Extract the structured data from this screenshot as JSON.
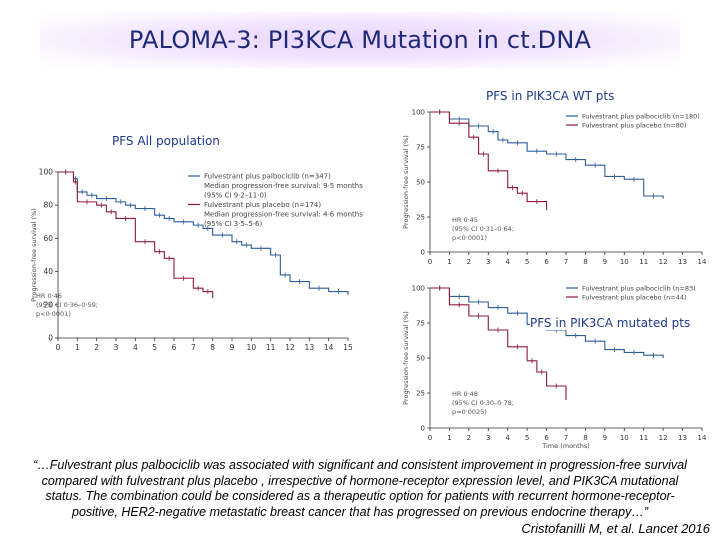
{
  "slide": {
    "title": "PALOMA-3: PI3KCA Mutation in ct.DNA",
    "label_all": "PFS All population",
    "label_wt": "PFS in PIK3CA WT pts",
    "label_mut": "PFS in PIK3CA mutated pts",
    "quote_line1": "“…Fulvestrant plus palbociclib was associated with significant and consistent improvement in progression-free survival",
    "quote_line2": "compared with fulvestrant plus placebo , irrespective of  hormone-receptor expression level, and PIK3CA mutational",
    "quote_line3": "status. The combination could be considered as a therapeutic option for patients with recurrent hormone-receptor-",
    "quote_line4": "positive, HER2-negative metastatic breast cancer that has progressed on previous endocrine therapy…”",
    "citation": "Cristofanilli M, et al. Lancet 2016"
  },
  "colors": {
    "palbo": "#2b5d9b",
    "placebo": "#8b1a3a",
    "title": "#1f2a7a",
    "label": "#1f3a8a"
  },
  "chart_data": [
    {
      "type": "line",
      "panel": "all",
      "ylabel": "Progression-free survival (%)",
      "yticks": [
        "0",
        "20",
        "40",
        "60",
        "80",
        "100"
      ],
      "xticks": [
        "0",
        "1",
        "2",
        "3",
        "4",
        "5",
        "6",
        "7",
        "8",
        "9",
        "10",
        "11",
        "12",
        "13",
        "14",
        "15"
      ],
      "ylim": [
        0,
        100
      ],
      "xlim": [
        0,
        15
      ],
      "legend": [
        "Fulvestrant plus palbociclib (n=347)",
        "Median progression-free survival: 9·5 months",
        "(95% CI 9·2–11·0)",
        "Fulvestrant plus placebo (n=174)",
        "Median progression-free survival: 4·6 months",
        "(95% CI 3·5–5·6)"
      ],
      "annotation": [
        "HR 0·46",
        "(95% CI 0·36–0·59;",
        "p<0·0001)"
      ],
      "series": [
        {
          "name": "Fulvestrant plus palbociclib",
          "x": [
            0,
            0.8,
            1,
            1.5,
            2,
            3,
            3.5,
            4,
            5,
            5.5,
            6,
            7,
            7.5,
            8,
            9,
            9.5,
            10,
            11,
            11.5,
            12,
            13,
            14,
            15
          ],
          "y": [
            100,
            96,
            88,
            86,
            84,
            82,
            80,
            78,
            74,
            72,
            70,
            68,
            66,
            62,
            58,
            56,
            54,
            50,
            38,
            34,
            30,
            28,
            26
          ]
        },
        {
          "name": "Fulvestrant plus placebo",
          "x": [
            0,
            0.8,
            1,
            2,
            2.5,
            3,
            4,
            5,
            5.5,
            6,
            7,
            7.5,
            8
          ],
          "y": [
            100,
            94,
            82,
            80,
            76,
            72,
            58,
            52,
            48,
            36,
            30,
            28,
            24
          ]
        }
      ]
    },
    {
      "type": "line",
      "panel": "PIK3CA WT",
      "ylabel": "Progression-free survival (%)",
      "yticks": [
        "0",
        "25",
        "50",
        "75",
        "100"
      ],
      "xticks": [
        "0",
        "1",
        "2",
        "3",
        "4",
        "5",
        "6",
        "7",
        "8",
        "9",
        "10",
        "11",
        "12",
        "13",
        "14"
      ],
      "ylim": [
        0,
        100
      ],
      "xlim": [
        0,
        14
      ],
      "legend": [
        "Fulvestrant plus palbociclib (n=180)",
        "Fulvestrant plus placebo (n=80)"
      ],
      "annotation": [
        "HR 0·45",
        "(95% CI 0·31–0·64;",
        "p<0·0001)"
      ],
      "series": [
        {
          "name": "Fulvestrant plus palbociclib",
          "x": [
            0,
            1,
            2,
            3,
            3.5,
            4,
            5,
            6,
            7,
            8,
            9,
            10,
            11,
            12
          ],
          "y": [
            100,
            95,
            90,
            86,
            80,
            78,
            72,
            70,
            66,
            62,
            54,
            52,
            40,
            38
          ]
        },
        {
          "name": "Fulvestrant plus placebo",
          "x": [
            0,
            1,
            2,
            2.5,
            3,
            4,
            4.5,
            5,
            6
          ],
          "y": [
            100,
            92,
            82,
            70,
            58,
            46,
            42,
            36,
            30
          ]
        }
      ]
    },
    {
      "type": "line",
      "panel": "PIK3CA mutated",
      "ylabel": "Progression-free survival (%)",
      "yticks": [
        "0",
        "25",
        "50",
        "75",
        "100"
      ],
      "xticks": [
        "0",
        "1",
        "2",
        "3",
        "4",
        "5",
        "6",
        "7",
        "8",
        "9",
        "10",
        "11",
        "12",
        "13",
        "14"
      ],
      "xlabel": "Time (months)",
      "ylim": [
        0,
        100
      ],
      "xlim": [
        0,
        14
      ],
      "legend": [
        "Fulvestrant plus palbociclib (n=83)",
        "Fulvestrant plus placebo (n=44)"
      ],
      "annotation": [
        "HR 0·48",
        "(95% CI 0·30–0·78;",
        "p=0·0025)"
      ],
      "series": [
        {
          "name": "Fulvestrant plus palbociclib",
          "x": [
            0,
            1,
            2,
            3,
            4,
            5,
            6,
            7,
            8,
            9,
            10,
            11,
            12
          ],
          "y": [
            100,
            94,
            90,
            86,
            82,
            74,
            70,
            66,
            62,
            56,
            54,
            52,
            50
          ]
        },
        {
          "name": "Fulvestrant plus placebo",
          "x": [
            0,
            1,
            2,
            3,
            4,
            5,
            5.5,
            6,
            7
          ],
          "y": [
            100,
            88,
            80,
            70,
            58,
            48,
            40,
            30,
            20
          ]
        }
      ]
    }
  ]
}
